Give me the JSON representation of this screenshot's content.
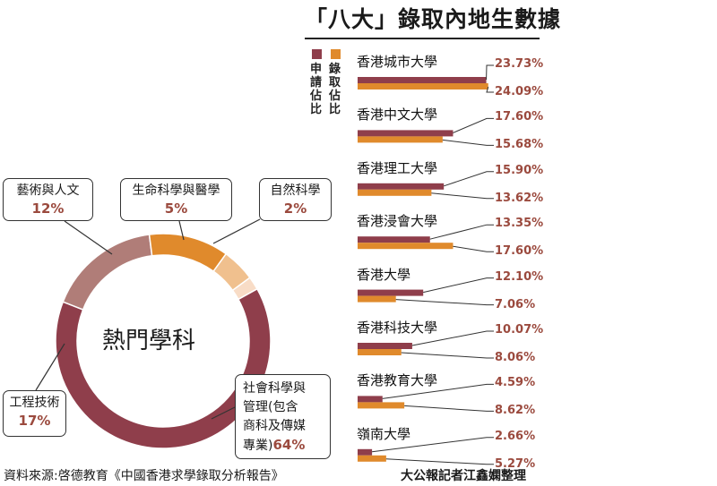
{
  "title": "「八大」錄取內地生數據",
  "legend": {
    "apply": "申請佔比",
    "admit": "錄取佔比"
  },
  "colors": {
    "apply": "#8f3e4b",
    "admit": "#e08a2c",
    "social": "#8f3e4b",
    "engineering": "#b07d78",
    "arts": "#e08a2c",
    "life": "#f0c08e",
    "science": "#f8dcc6",
    "pct_text": "#9b4a3e",
    "leader": "#333333"
  },
  "chart_data": [
    {
      "type": "bar",
      "title": "「八大」錄取內地生數據",
      "orientation": "horizontal",
      "unit": "%",
      "categories": [
        "香港城市大學",
        "香港中文大學",
        "香港理工大學",
        "香港浸會大學",
        "香港大學",
        "香港科技大學",
        "香港教育大學",
        "嶺南大學"
      ],
      "series": [
        {
          "name": "申請佔比",
          "values": [
            23.73,
            17.6,
            15.9,
            13.35,
            12.1,
            10.07,
            4.59,
            2.66
          ]
        },
        {
          "name": "錄取佔比",
          "values": [
            24.09,
            15.68,
            13.62,
            17.6,
            7.06,
            8.06,
            8.62,
            5.27
          ]
        }
      ],
      "labels": {
        "apply": [
          "23.73%",
          "17.60%",
          "15.90%",
          "13.35%",
          "12.10%",
          "10.07%",
          "4.59%",
          "2.66%"
        ],
        "admit": [
          "24.09%",
          "15.68%",
          "13.62%",
          "17.60%",
          "7.06%",
          "8.06%",
          "8.62%",
          "5.27%"
        ]
      },
      "legend_position": "left"
    },
    {
      "type": "pie",
      "subtype": "donut",
      "center_label": "熱門學科",
      "categories": [
        "社會科學與管理(包含商科及傳媒專業)",
        "工程技術",
        "藝術與人文",
        "生命科學與醫學",
        "自然科學"
      ],
      "values": [
        64,
        17,
        12,
        5,
        2
      ],
      "labels": {
        "social_line1": "社會科學與",
        "social_line2": "管理(包含",
        "social_line3": "商科及傳媒",
        "social_line4": "專業)",
        "social_pct": "64%",
        "engineering": "工程技術",
        "engineering_pct": "17%",
        "arts": "藝術與人文",
        "arts_pct": "12%",
        "life": "生命科學與醫學",
        "life_pct": "5%",
        "science": "自然科學",
        "science_pct": "2%"
      }
    }
  ],
  "footer": {
    "source": "資料來源:啓德教育《中國香港求學錄取分析報告》",
    "credit": "大公報記者江鑫嫻整理"
  }
}
